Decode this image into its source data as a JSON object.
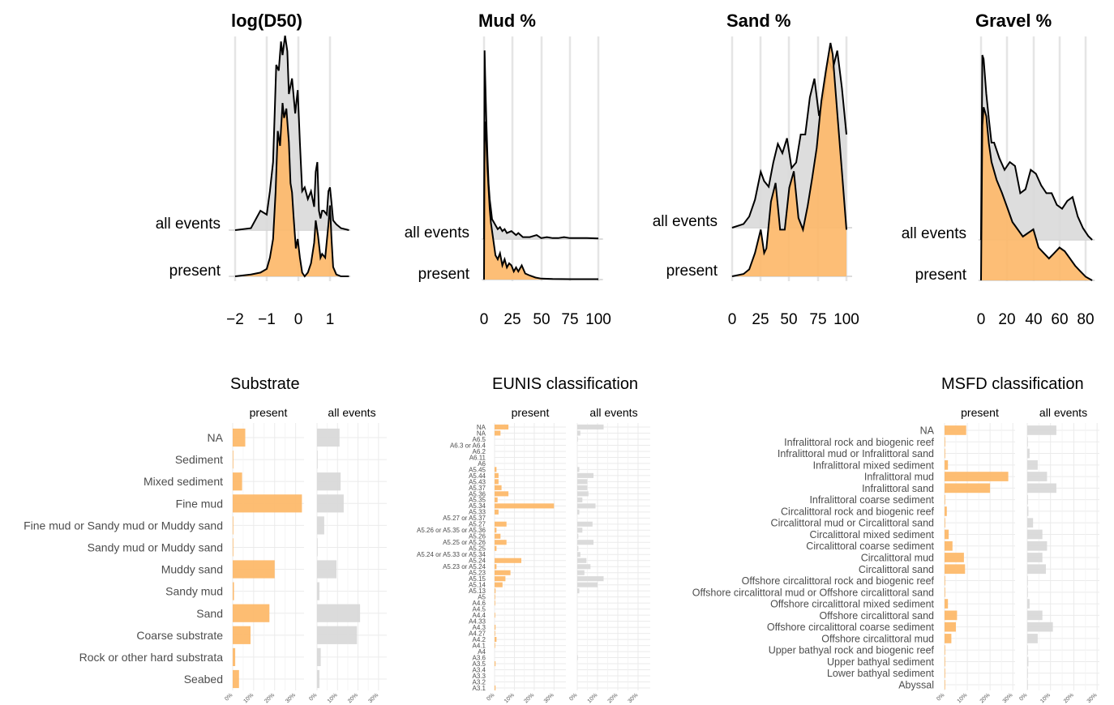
{
  "chart_data": [
    {
      "type": "area",
      "title": "log(D50)",
      "row_labels": [
        "all events",
        "present"
      ],
      "x_ticks": [
        -2,
        -1,
        0,
        1
      ],
      "x_tick_labels": [
        "−2",
        "−1",
        "0",
        "1"
      ],
      "xlim": [
        -2.2,
        1.65
      ],
      "series": [
        {
          "name": "all events",
          "x": [
            -2.0,
            -1.5,
            -1.2,
            -1.0,
            -0.9,
            -0.8,
            -0.75,
            -0.7,
            -0.62,
            -0.55,
            -0.5,
            -0.42,
            -0.35,
            -0.3,
            -0.2,
            -0.1,
            -0.02,
            0.05,
            0.12,
            0.2,
            0.3,
            0.4,
            0.5,
            0.55,
            0.6,
            0.65,
            0.7,
            0.75,
            0.8,
            0.9,
            0.95,
            1.0,
            1.05,
            1.1,
            1.2,
            1.35,
            1.6
          ],
          "y": [
            0,
            0.01,
            0.1,
            0.08,
            0.2,
            0.35,
            0.6,
            0.85,
            0.82,
            0.97,
            0.9,
            1.0,
            0.92,
            0.7,
            0.78,
            0.6,
            0.72,
            0.45,
            0.2,
            0.22,
            0.16,
            0.2,
            0.12,
            0.3,
            0.35,
            0.1,
            0.06,
            0.1,
            0.1,
            0.08,
            0.2,
            0.22,
            0.14,
            0.05,
            0.03,
            0.01,
            0
          ]
        },
        {
          "name": "present",
          "x": [
            -2.0,
            -1.5,
            -1.2,
            -1.0,
            -0.9,
            -0.8,
            -0.72,
            -0.65,
            -0.58,
            -0.5,
            -0.45,
            -0.38,
            -0.3,
            -0.25,
            -0.2,
            -0.15,
            -0.08,
            -0.02,
            0.05,
            0.12,
            0.2,
            0.3,
            0.4,
            0.5,
            0.55,
            0.62,
            0.7,
            0.75,
            0.85,
            0.95,
            1.0,
            1.05,
            1.1,
            1.2,
            1.35,
            1.6
          ],
          "y": [
            0,
            0.01,
            0.02,
            0.04,
            0.1,
            0.2,
            0.45,
            0.78,
            0.7,
            0.93,
            0.85,
            0.9,
            0.72,
            0.5,
            0.45,
            0.32,
            0.15,
            0.2,
            0.1,
            0.02,
            0.0,
            0.02,
            0.07,
            0.18,
            0.3,
            0.22,
            0.1,
            0.12,
            0.1,
            0.28,
            0.38,
            0.2,
            0.05,
            0.01,
            0.0,
            0
          ]
        }
      ]
    },
    {
      "type": "area",
      "title": "Mud %",
      "row_labels": [
        "all events",
        "present"
      ],
      "x_ticks": [
        0,
        25,
        50,
        75,
        100
      ],
      "x_tick_labels": [
        "0",
        "25",
        "50",
        "75",
        "100"
      ],
      "xlim": [
        -2,
        104
      ],
      "series": [
        {
          "name": "all events",
          "x": [
            0,
            0.5,
            1,
            2,
            3,
            4,
            5,
            6,
            7,
            8,
            10,
            12,
            14,
            16,
            18,
            20,
            24,
            28,
            30,
            34,
            40,
            46,
            50,
            55,
            60,
            65,
            70,
            75,
            80,
            90,
            100
          ],
          "y": [
            0,
            0.95,
            0.82,
            0.6,
            0.42,
            0.28,
            0.2,
            0.15,
            0.1,
            0.09,
            0.07,
            0.05,
            0.06,
            0.04,
            0.05,
            0.03,
            0.04,
            0.02,
            0.03,
            0.01,
            0.01,
            0.02,
            0.005,
            0.01,
            0.005,
            0.005,
            0.01,
            0.005,
            0.005,
            0.005,
            0.003
          ]
        },
        {
          "name": "present",
          "x": [
            0,
            0.5,
            1,
            2,
            3,
            4,
            5,
            6,
            8,
            10,
            12,
            14,
            16,
            18,
            20,
            22,
            24,
            26,
            28,
            30,
            33,
            36,
            40,
            45,
            50,
            60,
            75,
            100
          ],
          "y": [
            0,
            0.75,
            0.78,
            0.68,
            0.55,
            0.45,
            0.35,
            0.28,
            0.2,
            0.12,
            0.1,
            0.13,
            0.07,
            0.1,
            0.06,
            0.08,
            0.07,
            0.04,
            0.06,
            0.04,
            0.07,
            0.03,
            0.02,
            0.01,
            0.005,
            0.003,
            0.002,
            0.002
          ]
        }
      ]
    },
    {
      "type": "area",
      "title": "Sand %",
      "row_labels": [
        "all events",
        "present"
      ],
      "x_ticks": [
        0,
        25,
        50,
        75,
        100
      ],
      "x_tick_labels": [
        "0",
        "25",
        "50",
        "75",
        "100"
      ],
      "xlim": [
        -1,
        105
      ],
      "series": [
        {
          "name": "all events",
          "x": [
            0,
            10,
            15,
            20,
            25,
            28,
            32,
            36,
            40,
            44,
            48,
            52,
            56,
            60,
            64,
            68,
            72,
            76,
            80,
            84,
            88,
            92,
            96,
            100
          ],
          "y": [
            0,
            0.02,
            0.06,
            0.15,
            0.3,
            0.25,
            0.22,
            0.35,
            0.45,
            0.4,
            0.48,
            0.32,
            0.35,
            0.5,
            0.5,
            0.7,
            0.8,
            0.6,
            0.7,
            0.9,
            0.85,
            0.95,
            0.75,
            0.5
          ]
        },
        {
          "name": "present",
          "x": [
            0,
            10,
            15,
            20,
            25,
            28,
            30,
            34,
            38,
            42,
            46,
            50,
            54,
            58,
            62,
            66,
            70,
            74,
            78,
            82,
            86,
            88,
            92,
            96,
            100
          ],
          "y": [
            0,
            0.01,
            0.03,
            0.1,
            0.2,
            0.1,
            0.12,
            0.32,
            0.4,
            0.2,
            0.2,
            0.38,
            0.45,
            0.25,
            0.2,
            0.3,
            0.42,
            0.55,
            0.75,
            0.88,
            1.0,
            0.95,
            0.7,
            0.45,
            0.2
          ]
        }
      ]
    },
    {
      "type": "area",
      "title": "Gravel %",
      "row_labels": [
        "all events",
        "present"
      ],
      "x_ticks": [
        0,
        20,
        40,
        60,
        80
      ],
      "x_tick_labels": [
        "0",
        "20",
        "40",
        "60",
        "80"
      ],
      "xlim": [
        -2,
        87
      ],
      "series": [
        {
          "name": "all events",
          "x": [
            0,
            1,
            2,
            4,
            6,
            8,
            10,
            14,
            18,
            22,
            26,
            30,
            34,
            38,
            42,
            46,
            50,
            54,
            58,
            62,
            66,
            70,
            74,
            78,
            82,
            85
          ],
          "y": [
            0,
            0.95,
            0.93,
            0.75,
            0.62,
            0.5,
            0.5,
            0.42,
            0.36,
            0.4,
            0.38,
            0.24,
            0.26,
            0.36,
            0.34,
            0.28,
            0.24,
            0.24,
            0.18,
            0.16,
            0.2,
            0.22,
            0.12,
            0.06,
            0.02,
            0.0
          ]
        },
        {
          "name": "present",
          "x": [
            0,
            1,
            2,
            4,
            6,
            8,
            12,
            16,
            20,
            24,
            28,
            32,
            36,
            40,
            44,
            48,
            52,
            56,
            60,
            64,
            68,
            72,
            76,
            80,
            85
          ],
          "y": [
            0,
            0.85,
            0.95,
            0.9,
            0.75,
            0.65,
            0.55,
            0.48,
            0.4,
            0.32,
            0.28,
            0.24,
            0.26,
            0.28,
            0.18,
            0.15,
            0.12,
            0.15,
            0.18,
            0.16,
            0.12,
            0.08,
            0.05,
            0.02,
            0.0
          ]
        }
      ]
    },
    {
      "type": "bar",
      "orientation": "horizontal",
      "title": "Substrate",
      "panels": [
        "present",
        "all events"
      ],
      "x_ticks": [
        0,
        10,
        20,
        30
      ],
      "x_tick_labels": [
        "0%",
        "10%",
        "20%",
        "30%"
      ],
      "xlim": [
        0,
        34
      ],
      "categories": [
        "NA",
        "Sediment",
        "Mixed sediment",
        "Fine mud",
        "Fine mud or Sandy mud or Muddy sand",
        "Sandy mud or Muddy sand",
        "Muddy sand",
        "Sandy mud",
        "Sand",
        "Coarse substrate",
        "Rock or other hard substrata",
        "Seabed"
      ],
      "series": [
        {
          "name": "present",
          "values": [
            6.0,
            0.2,
            4.5,
            33.0,
            0.1,
            0.3,
            20.0,
            0.6,
            17.5,
            8.5,
            1.2,
            3.0
          ]
        },
        {
          "name": "all events",
          "values": [
            11.0,
            0.1,
            11.5,
            13.0,
            3.5,
            0.3,
            9.5,
            1.2,
            21.0,
            19.5,
            1.8,
            1.2
          ]
        }
      ]
    },
    {
      "type": "bar",
      "orientation": "horizontal",
      "title": "EUNIS classification",
      "panels": [
        "present",
        "all events"
      ],
      "x_ticks": [
        0,
        10,
        20,
        30
      ],
      "x_tick_labels": [
        "0%",
        "10%",
        "20%",
        "30%"
      ],
      "xlim": [
        0,
        36
      ],
      "categories": [
        "NA",
        "NA",
        "A6.5",
        "A6.3 or A6.4",
        "A6.2",
        "A6.11",
        "A6",
        "A5.45",
        "A5.44",
        "A5.43",
        "A5.37",
        "A5.36",
        "A5.35",
        "A5.34",
        "A5.33",
        "A5.27 or A5.37",
        "A5.27",
        "A5.26 or A5.35 or A5.36",
        "A5.26",
        "A5.25 or A5.26",
        "A5.25",
        "A5.24 or A5.33 or A5.34",
        "A5.24",
        "A5.23 or A5.24",
        "A5.23",
        "A5.15",
        "A5.14",
        "A5.13",
        "A5",
        "A4.6",
        "A4.5",
        "A4.4",
        "A4.33",
        "A4.3",
        "A4.27",
        "A4.2",
        "A4.1",
        "A4",
        "A3.6",
        "A3.5",
        "A3.4",
        "A3.3",
        "A3.2",
        "A3.1"
      ],
      "series": [
        {
          "name": "present",
          "values": [
            7.0,
            3.0,
            0,
            0,
            0,
            0,
            0,
            1.0,
            2.0,
            2.0,
            3.5,
            7.0,
            1.5,
            30.0,
            2.0,
            0,
            6.0,
            1.0,
            3.0,
            6.0,
            1.0,
            0,
            13.5,
            1.0,
            8.0,
            5.5,
            4.0,
            0.5,
            0.3,
            0.3,
            0,
            0.2,
            0,
            0.5,
            0.3,
            1.0,
            0.3,
            0,
            0,
            0.5,
            0,
            0,
            0,
            0.5
          ]
        },
        {
          "name": "all events",
          "values": [
            13.0,
            1.5,
            0.3,
            0,
            0,
            0,
            0,
            1.0,
            8.0,
            5.0,
            5.0,
            5.5,
            2.5,
            9.0,
            1.0,
            0,
            7.5,
            2.5,
            0.5,
            8.0,
            0.5,
            1.5,
            4.5,
            6.5,
            3.5,
            13.0,
            10.0,
            1.0,
            0,
            0,
            0,
            0,
            0,
            0,
            0,
            0,
            0,
            0,
            0.3,
            0,
            0,
            0,
            0,
            0
          ]
        }
      ]
    },
    {
      "type": "bar",
      "orientation": "horizontal",
      "title": "MSFD classification",
      "panels": [
        "present",
        "all events"
      ],
      "x_ticks": [
        0,
        10,
        20,
        30
      ],
      "x_tick_labels": [
        "0%",
        "10%",
        "20%",
        "30%"
      ],
      "xlim": [
        0,
        31
      ],
      "categories": [
        "NA",
        "Infralittoral rock and biogenic reef",
        "Infralittoral mud or Infralittoral sand",
        "Infralittoral mixed sediment",
        "Infralittoral mud",
        "Infralittoral sand",
        "Infralittoral coarse sediment",
        "Circalittoral rock and biogenic reef",
        "Circalittoral mud or Circalittoral sand",
        "Circalittoral mixed sediment",
        "Circalittoral coarse sediment",
        "Circalittoral mud",
        "Circalittoral sand",
        "Offshore circalittoral rock and biogenic reef",
        "Offshore circalittoral mud or Offshore circalittoral sand",
        "Offshore circalittoral mixed sediment",
        "Offshore circalittoral sand",
        "Offshore circalittoral coarse sediment",
        "Offshore circalittoral mud",
        "Upper bathyal rock and biogenic reef",
        "Upper bathyal sediment",
        "Lower bathyal sediment",
        "Abyssal"
      ],
      "series": [
        {
          "name": "present",
          "values": [
            9.5,
            0.2,
            0.2,
            1.5,
            28.0,
            20.0,
            0.3,
            1.0,
            0.2,
            1.8,
            3.5,
            8.5,
            9.0,
            0.1,
            0.1,
            1.5,
            5.5,
            5.0,
            3.0,
            0.1,
            0.1,
            0.1,
            0.1
          ]
        },
        {
          "name": "all events",
          "values": [
            12.5,
            0.2,
            1.0,
            4.5,
            8.5,
            12.5,
            0.3,
            0.5,
            2.5,
            6.5,
            8.5,
            6.5,
            8.0,
            0.1,
            0.2,
            1.0,
            6.5,
            11.0,
            4.5,
            0.1,
            0.5,
            0.1,
            0.1
          ]
        }
      ]
    }
  ]
}
